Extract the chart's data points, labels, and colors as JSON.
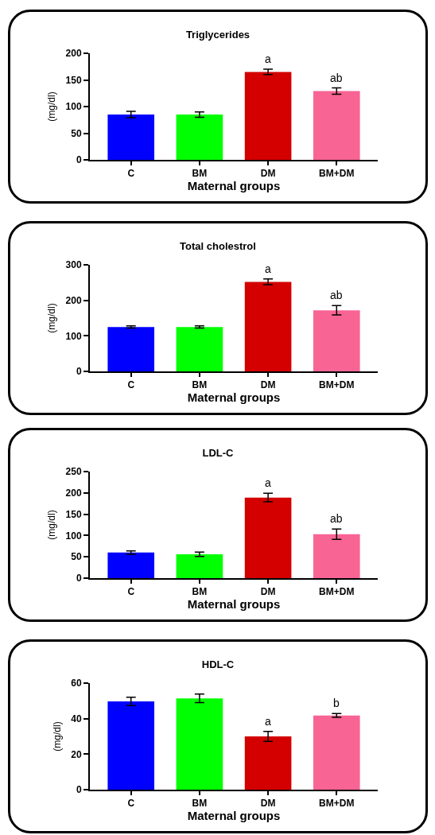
{
  "chart_data": [
    {
      "type": "bar",
      "title": "Triglycerides",
      "xlabel": "Maternal groups",
      "ylabel": "(mg/dl)",
      "categories": [
        "C",
        "BM",
        "DM",
        "BM+DM"
      ],
      "values": [
        85,
        85,
        165,
        129
      ],
      "errors": [
        6,
        5,
        5,
        6
      ],
      "colors": [
        "#0000ff",
        "#00ff00",
        "#d40000",
        "#f86494"
      ],
      "ylim": [
        0,
        200
      ],
      "yticks": [
        0,
        50,
        100,
        150,
        200
      ],
      "grid": false,
      "annotations": [
        {
          "text": "a",
          "x": "DM",
          "y": 170
        },
        {
          "text": "ab",
          "x": "BM+DM",
          "y": 135
        }
      ]
    },
    {
      "type": "bar",
      "title": "Total cholestrol",
      "xlabel": "Maternal groups",
      "ylabel": "(mg/dl)",
      "categories": [
        "C",
        "BM",
        "DM",
        "BM+DM"
      ],
      "values": [
        125,
        125,
        252,
        172
      ],
      "errors": [
        3,
        3,
        8,
        13
      ],
      "colors": [
        "#0000ff",
        "#00ff00",
        "#d40000",
        "#f86494"
      ],
      "ylim": [
        0,
        300
      ],
      "yticks": [
        0,
        100,
        200,
        300
      ],
      "grid": false,
      "annotations": [
        {
          "text": "a",
          "x": "DM",
          "y": 260
        },
        {
          "text": "ab",
          "x": "BM+DM",
          "y": 185
        }
      ]
    },
    {
      "type": "bar",
      "title": "LDL-C",
      "xlabel": "Maternal groups",
      "ylabel": "(mg/dl)",
      "categories": [
        "C",
        "BM",
        "DM",
        "BM+DM"
      ],
      "values": [
        60,
        56,
        189,
        103
      ],
      "errors": [
        4,
        5,
        10,
        12
      ],
      "colors": [
        "#0000ff",
        "#00ff00",
        "#d40000",
        "#f86494"
      ],
      "ylim": [
        0,
        250
      ],
      "yticks": [
        0,
        50,
        100,
        150,
        200,
        250
      ],
      "grid": false,
      "annotations": [
        {
          "text": "a",
          "x": "DM",
          "y": 199
        },
        {
          "text": "ab",
          "x": "BM+DM",
          "y": 115
        }
      ]
    },
    {
      "type": "bar",
      "title": "HDL-C",
      "xlabel": "Maternal groups",
      "ylabel": "(mg/dl)",
      "categories": [
        "C",
        "BM",
        "DM",
        "BM+DM"
      ],
      "values": [
        49.7,
        51.4,
        30,
        41.8
      ],
      "errors": [
        2.3,
        2.4,
        2.8,
        1.1
      ],
      "colors": [
        "#0000ff",
        "#00ff00",
        "#d40000",
        "#f86494"
      ],
      "ylim": [
        0,
        60
      ],
      "yticks": [
        0,
        20,
        40,
        60
      ],
      "grid": false,
      "annotations": [
        {
          "text": "a",
          "x": "DM",
          "y": 32.8
        },
        {
          "text": "b",
          "x": "BM+DM",
          "y": 42.9
        }
      ]
    }
  ]
}
